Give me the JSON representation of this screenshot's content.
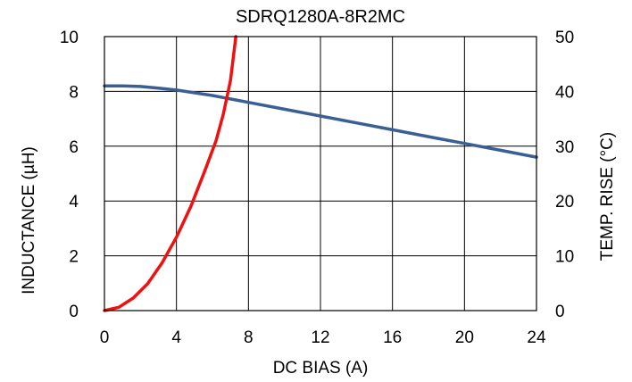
{
  "chart_data": {
    "type": "line",
    "title": "SDRQ1280A-8R2MC",
    "xlabel": "DC BIAS (A)",
    "ylabel_left": "INDUCTANCE (µH)",
    "ylabel_right": "TEMP. RISE (°C)",
    "xlim": [
      0,
      24
    ],
    "ylim_left": [
      0,
      10
    ],
    "ylim_right": [
      0,
      50
    ],
    "x_ticks": [
      "0",
      "4",
      "8",
      "12",
      "16",
      "20",
      "24"
    ],
    "y_left_ticks": [
      "0",
      "2",
      "4",
      "6",
      "8",
      "10"
    ],
    "y_right_ticks": [
      "0",
      "10",
      "20",
      "30",
      "40",
      "50"
    ],
    "grid": true,
    "series": [
      {
        "axis": "left",
        "color": "#3a5f94",
        "x": [
          0,
          1,
          2,
          3,
          4,
          6,
          8,
          10,
          12,
          14,
          16,
          18,
          20,
          22,
          24
        ],
        "y": [
          8.2,
          8.2,
          8.18,
          8.12,
          8.05,
          7.85,
          7.6,
          7.35,
          7.1,
          6.85,
          6.6,
          6.35,
          6.1,
          5.85,
          5.6
        ]
      },
      {
        "axis": "right",
        "color": "#ee1111",
        "x": [
          0,
          0.8,
          1.6,
          2.4,
          3.2,
          4.0,
          4.8,
          5.6,
          6.2,
          6.6,
          7.0,
          7.3
        ],
        "y": [
          0,
          0.6,
          2.3,
          4.9,
          8.7,
          13.4,
          19.0,
          25.7,
          31.0,
          35.8,
          42.0,
          50.0
        ]
      }
    ]
  }
}
